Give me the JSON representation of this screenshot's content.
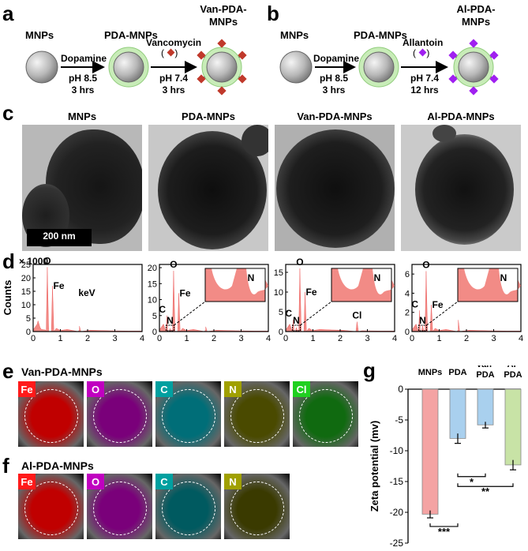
{
  "panel_labels": {
    "a": "a",
    "b": "b",
    "c": "c",
    "d": "d",
    "e": "e",
    "f": "f",
    "g": "g"
  },
  "scheme_a": {
    "start": "MNPs",
    "mid": "PDA-MNPs",
    "end": "Van-PDA-MNPs",
    "end_lines": [
      "Van-PDA-",
      "MNPs"
    ],
    "step1_reagent": "Dopamine",
    "step1_cond1": "pH 8.5",
    "step1_cond2": "3 hrs",
    "step2_reagent": "Vancomycin",
    "step2_cond1": "pH 7.4",
    "step2_cond2": "3 hrs",
    "ligand_color": "#c0392b"
  },
  "scheme_b": {
    "start": "MNPs",
    "mid": "PDA-MNPs",
    "end": "Al-PDA-MNPs",
    "end_lines": [
      "Al-PDA-",
      "MNPs"
    ],
    "step1_reagent": "Dopamine",
    "step1_cond1": "pH 8.5",
    "step1_cond2": "3 hrs",
    "step2_reagent": "Allantoin",
    "step2_cond1": "pH 7.4",
    "step2_cond2": "12 hrs",
    "ligand_color": "#a020f0"
  },
  "tem": {
    "titles": [
      "MNPs",
      "PDA-MNPs",
      "Van-PDA-MNPs",
      "Al-PDA-MNPs"
    ],
    "scale_bar": "200 nm"
  },
  "eds": {
    "ylabel": "Counts",
    "xlabel": "keV",
    "multiplier": "× 1000",
    "xticks": [
      "0",
      "1",
      "2",
      "3",
      "4"
    ],
    "panels": [
      {
        "yticks": [
          "0",
          "5",
          "10",
          "15",
          "20",
          "25"
        ],
        "ymax": 25,
        "peaks": [
          {
            "x": 0.52,
            "y": 24,
            "label": "O"
          },
          {
            "x": 0.71,
            "y": 17,
            "label": "Fe"
          }
        ],
        "inset": false
      },
      {
        "yticks": [
          "0",
          "5",
          "10",
          "15",
          "20"
        ],
        "ymax": 21,
        "peaks": [
          {
            "x": 0.28,
            "y": 5,
            "label": "C"
          },
          {
            "x": 0.39,
            "y": 1,
            "label": "N"
          },
          {
            "x": 0.52,
            "y": 19,
            "label": "O"
          },
          {
            "x": 0.71,
            "y": 12,
            "label": "Fe"
          }
        ],
        "inset": true,
        "inset_label": "N"
      },
      {
        "yticks": [
          "0",
          "5",
          "10",
          "15"
        ],
        "ymax": 17,
        "peaks": [
          {
            "x": 0.28,
            "y": 3,
            "label": "C"
          },
          {
            "x": 0.39,
            "y": 1,
            "label": "N"
          },
          {
            "x": 0.52,
            "y": 16,
            "label": "O"
          },
          {
            "x": 0.71,
            "y": 10,
            "label": "Fe"
          },
          {
            "x": 2.62,
            "y": 2.5,
            "label": "Cl"
          }
        ],
        "inset": true,
        "inset_label": "N"
      },
      {
        "yticks": [
          "0",
          "2",
          "4",
          "6"
        ],
        "ymax": 7,
        "peaks": [
          {
            "x": 0.28,
            "y": 2.2,
            "label": "C"
          },
          {
            "x": 0.39,
            "y": 0.6,
            "label": "N"
          },
          {
            "x": 0.52,
            "y": 6.3,
            "label": "O"
          },
          {
            "x": 0.71,
            "y": 2.8,
            "label": "Fe"
          }
        ],
        "inset": true,
        "inset_label": "N"
      }
    ]
  },
  "maps_e": {
    "title": "Van-PDA-MNPs",
    "items": [
      {
        "label": "Fe",
        "color": "#ff1a1a",
        "bg": "#c00000"
      },
      {
        "label": "O",
        "color": "#c000c0",
        "bg": "#7a007a"
      },
      {
        "label": "C",
        "color": "#00a0a0",
        "bg": "#006e78"
      },
      {
        "label": "N",
        "color": "#a0a000",
        "bg": "#4a4a00"
      },
      {
        "label": "Cl",
        "color": "#20d020",
        "bg": "#106a10"
      }
    ]
  },
  "maps_f": {
    "title": "Al-PDA-MNPs",
    "items": [
      {
        "label": "Fe",
        "color": "#ff1a1a",
        "bg": "#c00000"
      },
      {
        "label": "O",
        "color": "#c000c0",
        "bg": "#7a007a"
      },
      {
        "label": "C",
        "color": "#00a0a0",
        "bg": "#005a60"
      },
      {
        "label": "N",
        "color": "#a0a000",
        "bg": "#3a3a00"
      }
    ]
  },
  "chart_data": {
    "type": "bar",
    "categories": [
      "MNPs",
      "PDA",
      "Van-PDA",
      "Al-PDA"
    ],
    "category_lines": [
      [
        "MNPs"
      ],
      [
        "PDA"
      ],
      [
        "Van-",
        "PDA"
      ],
      [
        "Al-",
        "PDA"
      ]
    ],
    "values": [
      -20.3,
      -8.0,
      -5.8,
      -12.3
    ],
    "errors": [
      0.6,
      0.8,
      0.5,
      0.8
    ],
    "colors": [
      "#f4a3a3",
      "#a9d0ee",
      "#a9d0ee",
      "#c8e3a6"
    ],
    "ylabel": "Zeta potential (mv)",
    "ylim": [
      -25,
      0
    ],
    "yticks": [
      "0",
      "-5",
      "-10",
      "-15",
      "-20",
      "-25"
    ],
    "significance": [
      "*",
      "**",
      "***"
    ]
  }
}
